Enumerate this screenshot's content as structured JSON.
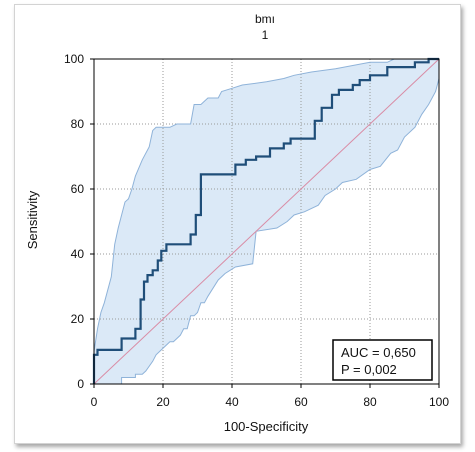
{
  "chart_data": {
    "type": "line",
    "title": "bmı",
    "subtitle": "1",
    "xlabel": "100-Specificity",
    "ylabel": "Sensitivity",
    "xlim": [
      0,
      100
    ],
    "ylim": [
      0,
      100
    ],
    "xticks": [
      0,
      20,
      40,
      60,
      80,
      100
    ],
    "yticks": [
      0,
      20,
      40,
      60,
      80,
      100
    ],
    "grid": true,
    "annotation": {
      "auc_text": "AUC = 0,650",
      "p_text": "P = 0,002"
    },
    "colors": {
      "roc": "#1f4e79",
      "ci_fill": "#dbe9f7",
      "ci_line": "#8fb3d9",
      "diagonal": "#d98ca5",
      "grid": "#9a9a9a"
    },
    "series": [
      {
        "role": "roc",
        "points": [
          [
            0,
            0
          ],
          [
            0,
            9
          ],
          [
            1,
            9
          ],
          [
            1,
            10.5
          ],
          [
            8,
            10.5
          ],
          [
            8,
            14
          ],
          [
            12,
            14
          ],
          [
            12,
            17
          ],
          [
            13.5,
            17
          ],
          [
            13.5,
            26
          ],
          [
            14.5,
            26
          ],
          [
            14.5,
            31.5
          ],
          [
            15.5,
            31.5
          ],
          [
            15.5,
            33.5
          ],
          [
            17,
            33.5
          ],
          [
            17,
            35
          ],
          [
            18.5,
            35
          ],
          [
            18.5,
            38
          ],
          [
            19.5,
            38
          ],
          [
            19.5,
            41
          ],
          [
            21,
            41
          ],
          [
            21,
            43
          ],
          [
            28,
            43
          ],
          [
            28,
            46
          ],
          [
            29.5,
            46
          ],
          [
            29.5,
            52
          ],
          [
            31,
            52
          ],
          [
            31,
            64.5
          ],
          [
            41,
            64.5
          ],
          [
            41,
            67.5
          ],
          [
            44,
            67.5
          ],
          [
            44,
            69
          ],
          [
            47,
            69
          ],
          [
            47,
            70
          ],
          [
            51,
            70
          ],
          [
            51,
            72.5
          ],
          [
            55,
            72.5
          ],
          [
            55,
            74
          ],
          [
            57,
            74
          ],
          [
            57,
            75.5
          ],
          [
            64,
            75.5
          ],
          [
            64,
            81
          ],
          [
            66,
            81
          ],
          [
            66,
            85
          ],
          [
            69,
            85
          ],
          [
            69,
            89
          ],
          [
            71,
            89
          ],
          [
            71,
            90.5
          ],
          [
            75,
            90.5
          ],
          [
            75,
            92
          ],
          [
            77,
            92
          ],
          [
            77,
            93.5
          ],
          [
            80,
            93.5
          ],
          [
            80,
            95
          ],
          [
            85,
            95
          ],
          [
            85,
            97.5
          ],
          [
            93,
            97.5
          ],
          [
            93,
            99
          ],
          [
            97,
            99
          ],
          [
            97,
            100
          ],
          [
            100,
            100
          ]
        ]
      },
      {
        "role": "ci-upper",
        "points": [
          [
            0,
            10
          ],
          [
            1,
            17
          ],
          [
            2,
            22
          ],
          [
            3,
            25
          ],
          [
            5,
            33
          ],
          [
            6,
            43
          ],
          [
            7,
            48
          ],
          [
            8,
            52
          ],
          [
            9,
            56
          ],
          [
            10,
            57
          ],
          [
            11,
            60
          ],
          [
            12,
            64
          ],
          [
            14,
            69
          ],
          [
            16,
            73
          ],
          [
            17,
            78
          ],
          [
            18,
            79
          ],
          [
            22,
            79
          ],
          [
            24,
            80
          ],
          [
            26,
            80
          ],
          [
            28,
            80
          ],
          [
            29,
            86
          ],
          [
            31,
            86
          ],
          [
            33,
            88
          ],
          [
            36,
            88
          ],
          [
            37,
            90
          ],
          [
            40,
            91
          ],
          [
            43,
            92
          ],
          [
            50,
            93
          ],
          [
            55,
            94
          ],
          [
            58,
            95
          ],
          [
            63,
            96
          ],
          [
            70,
            97
          ],
          [
            80,
            99
          ],
          [
            85,
            99
          ],
          [
            87,
            100
          ],
          [
            100,
            100
          ]
        ]
      },
      {
        "role": "ci-lower",
        "points": [
          [
            0,
            0
          ],
          [
            8,
            0
          ],
          [
            8,
            2
          ],
          [
            12,
            2
          ],
          [
            12,
            3
          ],
          [
            14,
            3
          ],
          [
            15,
            4
          ],
          [
            17,
            7
          ],
          [
            18,
            9
          ],
          [
            20,
            11
          ],
          [
            22,
            13
          ],
          [
            23,
            13
          ],
          [
            25,
            15
          ],
          [
            26,
            17
          ],
          [
            27,
            17
          ],
          [
            28,
            21
          ],
          [
            29,
            21
          ],
          [
            30,
            22
          ],
          [
            31,
            25
          ],
          [
            32,
            25
          ],
          [
            33,
            27
          ],
          [
            36,
            32
          ],
          [
            38,
            34
          ],
          [
            41,
            36
          ],
          [
            46,
            37
          ],
          [
            47,
            47
          ],
          [
            53,
            48
          ],
          [
            56,
            50
          ],
          [
            58,
            52
          ],
          [
            61,
            53
          ],
          [
            65,
            55
          ],
          [
            67,
            58
          ],
          [
            70,
            60
          ],
          [
            72,
            62
          ],
          [
            76,
            63
          ],
          [
            80,
            66
          ],
          [
            83,
            67
          ],
          [
            86,
            71
          ],
          [
            88,
            72
          ],
          [
            90,
            76
          ],
          [
            93,
            79
          ],
          [
            95,
            83
          ],
          [
            97,
            86
          ],
          [
            99,
            90
          ],
          [
            100,
            94
          ],
          [
            100,
            100
          ]
        ]
      },
      {
        "role": "diagonal",
        "points": [
          [
            0,
            0
          ],
          [
            100,
            100
          ]
        ]
      }
    ]
  }
}
